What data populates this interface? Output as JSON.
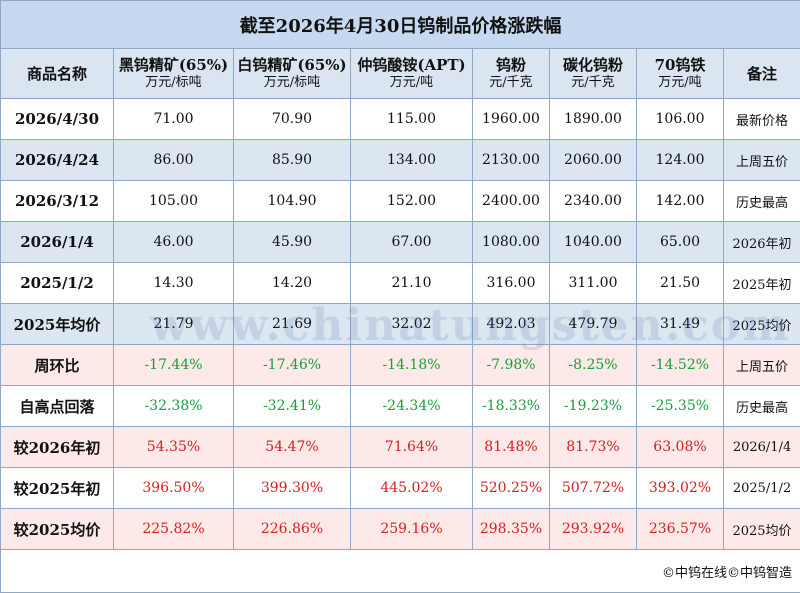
{
  "title": "截至2026年4月30日钨制品价格涨跌幅",
  "table": {
    "headers": [
      {
        "name": "商品名称"
      },
      {
        "name": "黑钨精矿(65%)",
        "unit": "万元/标吨"
      },
      {
        "name": "白钨精矿(65%)",
        "unit": "万元/标吨"
      },
      {
        "name": "仲钨酸铵(APT)",
        "unit": "万元/吨"
      },
      {
        "name": "钨粉",
        "unit": "元/千克"
      },
      {
        "name": "碳化钨粉",
        "unit": "元/千克"
      },
      {
        "name": "70钨铁",
        "unit": "万元/吨"
      },
      {
        "name": "备注"
      }
    ],
    "rows": [
      [
        "2026/4/30",
        "71.00",
        "70.90",
        "115.00",
        "1960.00",
        "1890.00",
        "106.00",
        "最新价格"
      ],
      [
        "2026/4/24",
        "86.00",
        "85.90",
        "134.00",
        "2130.00",
        "2060.00",
        "124.00",
        "上周五价"
      ],
      [
        "2026/3/12",
        "105.00",
        "104.90",
        "152.00",
        "2400.00",
        "2340.00",
        "142.00",
        "历史最高"
      ],
      [
        "2026/1/4",
        "46.00",
        "45.90",
        "67.00",
        "1080.00",
        "1040.00",
        "65.00",
        "2026年初"
      ],
      [
        "2025/1/2",
        "14.30",
        "14.20",
        "21.10",
        "316.00",
        "311.00",
        "21.50",
        "2025年初"
      ],
      [
        "2025年均价",
        "21.79",
        "21.69",
        "32.02",
        "492.03",
        "479.79",
        "31.49",
        "2025均价"
      ],
      [
        "周环比",
        "-17.44%",
        "-17.46%",
        "-14.18%",
        "-7.98%",
        "-8.25%",
        "-14.52%",
        "上周五价"
      ],
      [
        "自高点回落",
        "-32.38%",
        "-32.41%",
        "-24.34%",
        "-18.33%",
        "-19.23%",
        "-25.35%",
        "历史最高"
      ],
      [
        "较2026年初",
        "54.35%",
        "54.47%",
        "71.64%",
        "81.48%",
        "81.73%",
        "63.08%",
        "2026/1/4"
      ],
      [
        "较2025年初",
        "396.50%",
        "399.30%",
        "445.02%",
        "520.25%",
        "507.72%",
        "393.02%",
        "2025/1/2"
      ],
      [
        "较2025均价",
        "225.82%",
        "226.86%",
        "259.16%",
        "298.35%",
        "293.92%",
        "236.57%",
        "2025均价"
      ]
    ]
  },
  "watermark": "www.chinatungsten.com",
  "footer": "©中钨在线©中钨智造"
}
